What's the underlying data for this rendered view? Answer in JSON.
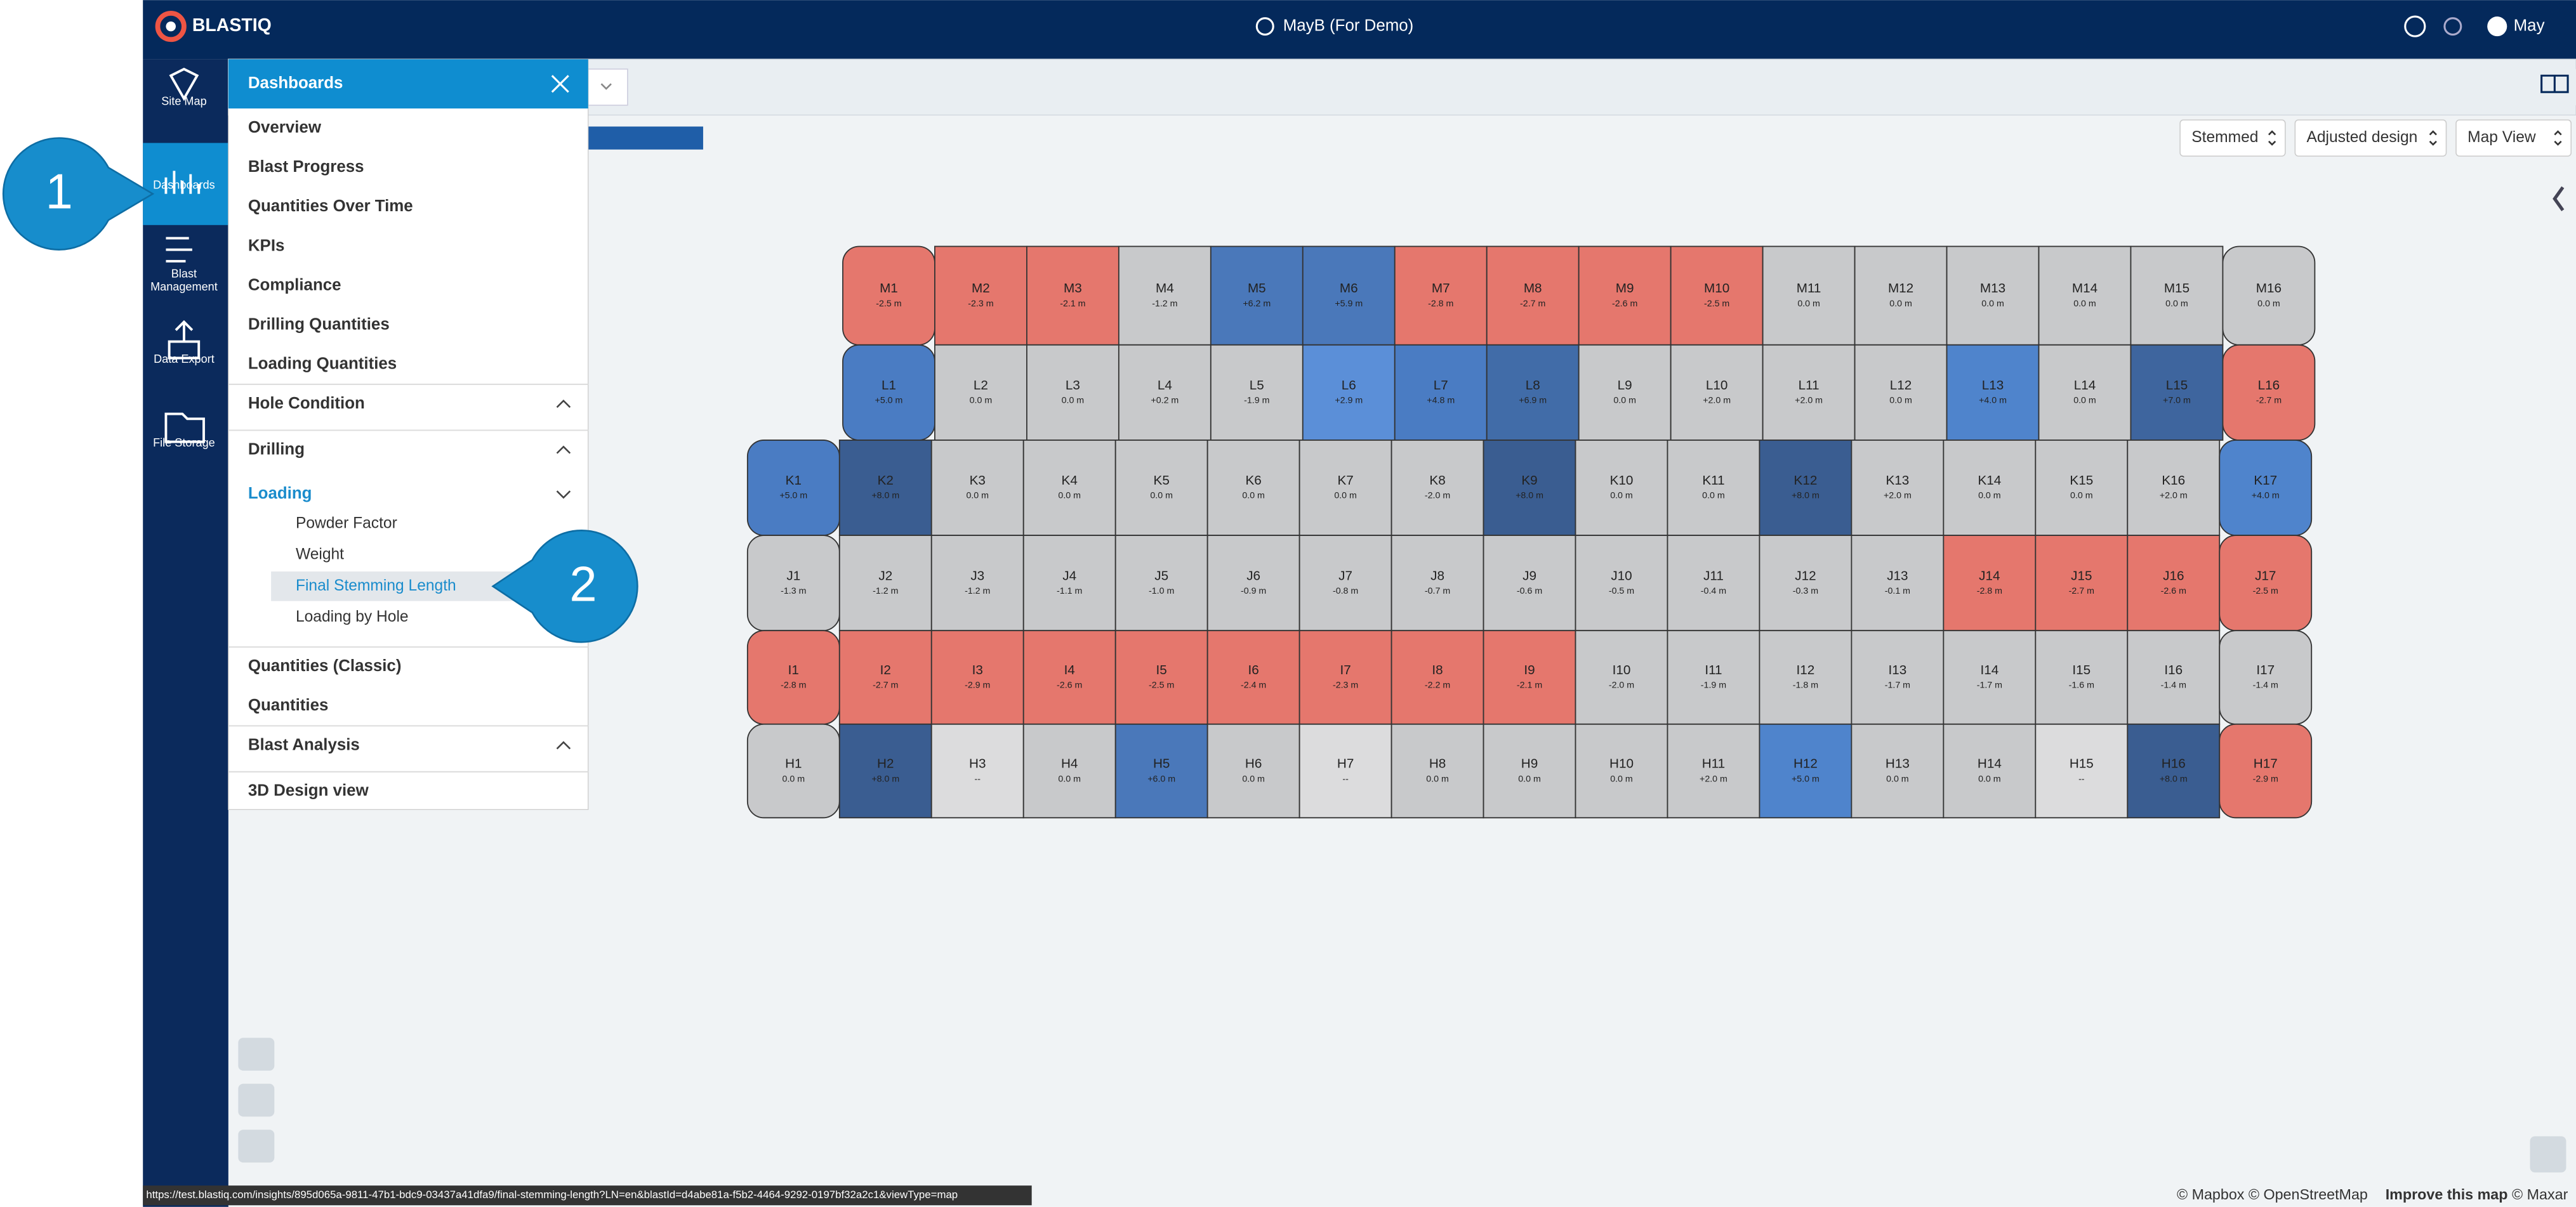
{
  "header": {
    "logo": "BLASTIQ",
    "site": "MayB (For Demo)",
    "user": "May"
  },
  "sidebar": [
    [
      "Site Map"
    ],
    [
      "Dashboards"
    ],
    [
      "Blast",
      "Management"
    ],
    [
      "Data Export"
    ],
    [
      "File Storage"
    ]
  ],
  "menu": {
    "title": "Dashboards",
    "items": [
      {
        "label": "Overview",
        "kind": "link"
      },
      {
        "label": "Blast Progress",
        "kind": "link"
      },
      {
        "label": "Quantities Over Time",
        "kind": "link"
      },
      {
        "label": "KPIs",
        "kind": "link"
      },
      {
        "label": "Compliance",
        "kind": "link"
      },
      {
        "label": "Drilling Quantities",
        "kind": "link"
      },
      {
        "label": "Loading Quantities",
        "kind": "link"
      },
      {
        "label": "Hole Condition",
        "kind": "group"
      },
      {
        "label": "Drilling",
        "kind": "group"
      },
      {
        "label": "Loading",
        "kind": "open"
      },
      {
        "label": "Powder Factor",
        "kind": "sub"
      },
      {
        "label": "Weight",
        "kind": "sub"
      },
      {
        "label": "Final Stemming Length",
        "kind": "selected"
      },
      {
        "label": "Loading by Hole",
        "kind": "sub"
      },
      {
        "label": "Quantities (Classic)",
        "kind": "link"
      },
      {
        "label": "Quantities",
        "kind": "link"
      },
      {
        "label": "Blast Analysis",
        "kind": "group"
      },
      {
        "label": "3D Design view",
        "kind": "link"
      }
    ]
  },
  "toolbar": [
    "Stemmed",
    "Adjusted design",
    "Map View"
  ],
  "callouts": [
    "1",
    "2"
  ],
  "rows": [
    {
      "cells": [
        {
          "label": "M1",
          "value": "-2.5 m",
          "color": "#e5776d"
        },
        {
          "label": "M2",
          "value": "-2.3 m",
          "color": "#e5776d"
        },
        {
          "label": "M3",
          "value": "-2.1 m",
          "color": "#e5776d"
        },
        {
          "label": "M4",
          "value": "-1.2 m",
          "color": "#c8c9cb"
        },
        {
          "label": "M5",
          "value": "+6.2 m",
          "color": "#4a78ba"
        },
        {
          "label": "M6",
          "value": "+5.9 m",
          "color": "#4a78ba"
        },
        {
          "label": "M7",
          "value": "-2.8 m",
          "color": "#e5776d"
        },
        {
          "label": "M8",
          "value": "-2.7 m",
          "color": "#e5776d"
        },
        {
          "label": "M9",
          "value": "-2.6 m",
          "color": "#e5776d"
        },
        {
          "label": "M10",
          "value": "-2.5 m",
          "color": "#e5776d"
        },
        {
          "label": "M11",
          "value": "0.0 m",
          "color": "#c8c9cb"
        },
        {
          "label": "M12",
          "value": "0.0 m",
          "color": "#c8c9cb"
        },
        {
          "label": "M13",
          "value": "0.0 m",
          "color": "#c8c9cb"
        },
        {
          "label": "M14",
          "value": "0.0 m",
          "color": "#c8c9cb"
        },
        {
          "label": "M15",
          "value": "0.0 m",
          "color": "#c8c9cb"
        },
        {
          "label": "M16",
          "value": "0.0 m",
          "color": "#c8c9cb"
        }
      ]
    },
    {
      "cells": [
        {
          "label": "L1",
          "value": "+5.0 m",
          "color": "#4a7cc3"
        },
        {
          "label": "L2",
          "value": "0.0 m",
          "color": "#c8c9cb"
        },
        {
          "label": "L3",
          "value": "0.0 m",
          "color": "#c8c9cb"
        },
        {
          "label": "L4",
          "value": "+0.2 m",
          "color": "#c8c9cb"
        },
        {
          "label": "L5",
          "value": "-1.9 m",
          "color": "#c8c9cb"
        },
        {
          "label": "L6",
          "value": "+2.9 m",
          "color": "#5b8fd8"
        },
        {
          "label": "L7",
          "value": "+4.8 m",
          "color": "#4a7cc3"
        },
        {
          "label": "L8",
          "value": "+6.9 m",
          "color": "#416ca8"
        },
        {
          "label": "L9",
          "value": "0.0 m",
          "color": "#c8c9cb"
        },
        {
          "label": "L10",
          "value": "+2.0 m",
          "color": "#c8c9cb"
        },
        {
          "label": "L11",
          "value": "+2.0 m",
          "color": "#c8c9cb"
        },
        {
          "label": "L12",
          "value": "0.0 m",
          "color": "#c8c9cb"
        },
        {
          "label": "L13",
          "value": "+4.0 m",
          "color": "#4f84cc"
        },
        {
          "label": "L14",
          "value": "0.0 m",
          "color": "#c8c9cb"
        },
        {
          "label": "L15",
          "value": "+7.0 m",
          "color": "#3e659e"
        },
        {
          "label": "L16",
          "value": "-2.7 m",
          "color": "#e5776d"
        }
      ]
    },
    {
      "cells": [
        {
          "label": "K1",
          "value": "+5.0 m",
          "color": "#4a7cc3"
        },
        {
          "label": "K2",
          "value": "+8.0 m",
          "color": "#3a5d91"
        },
        {
          "label": "K3",
          "value": "0.0 m",
          "color": "#c8c9cb"
        },
        {
          "label": "K4",
          "value": "0.0 m",
          "color": "#c8c9cb"
        },
        {
          "label": "K5",
          "value": "0.0 m",
          "color": "#c8c9cb"
        },
        {
          "label": "K6",
          "value": "0.0 m",
          "color": "#c8c9cb"
        },
        {
          "label": "K7",
          "value": "0.0 m",
          "color": "#c8c9cb"
        },
        {
          "label": "K8",
          "value": "-2.0 m",
          "color": "#c8c9cb"
        },
        {
          "label": "K9",
          "value": "+8.0 m",
          "color": "#3a5d91"
        },
        {
          "label": "K10",
          "value": "0.0 m",
          "color": "#c8c9cb"
        },
        {
          "label": "K11",
          "value": "0.0 m",
          "color": "#c8c9cb"
        },
        {
          "label": "K12",
          "value": "+8.0 m",
          "color": "#3a5d91"
        },
        {
          "label": "K13",
          "value": "+2.0 m",
          "color": "#c8c9cb"
        },
        {
          "label": "K14",
          "value": "0.0 m",
          "color": "#c8c9cb"
        },
        {
          "label": "K15",
          "value": "0.0 m",
          "color": "#c8c9cb"
        },
        {
          "label": "K16",
          "value": "+2.0 m",
          "color": "#c8c9cb"
        },
        {
          "label": "K17",
          "value": "+4.0 m",
          "color": "#4f84cc"
        }
      ]
    },
    {
      "cells": [
        {
          "label": "J1",
          "value": "-1.3 m",
          "color": "#c8c9cb"
        },
        {
          "label": "J2",
          "value": "-1.2 m",
          "color": "#c8c9cb"
        },
        {
          "label": "J3",
          "value": "-1.2 m",
          "color": "#c8c9cb"
        },
        {
          "label": "J4",
          "value": "-1.1 m",
          "color": "#c8c9cb"
        },
        {
          "label": "J5",
          "value": "-1.0 m",
          "color": "#c8c9cb"
        },
        {
          "label": "J6",
          "value": "-0.9 m",
          "color": "#c8c9cb"
        },
        {
          "label": "J7",
          "value": "-0.8 m",
          "color": "#c8c9cb"
        },
        {
          "label": "J8",
          "value": "-0.7 m",
          "color": "#c8c9cb"
        },
        {
          "label": "J9",
          "value": "-0.6 m",
          "color": "#c8c9cb"
        },
        {
          "label": "J10",
          "value": "-0.5 m",
          "color": "#c8c9cb"
        },
        {
          "label": "J11",
          "value": "-0.4 m",
          "color": "#c8c9cb"
        },
        {
          "label": "J12",
          "value": "-0.3 m",
          "color": "#c8c9cb"
        },
        {
          "label": "J13",
          "value": "-0.1 m",
          "color": "#c8c9cb"
        },
        {
          "label": "J14",
          "value": "-2.8 m",
          "color": "#e5776d"
        },
        {
          "label": "J15",
          "value": "-2.7 m",
          "color": "#e5776d"
        },
        {
          "label": "J16",
          "value": "-2.6 m",
          "color": "#e5776d"
        },
        {
          "label": "J17",
          "value": "-2.5 m",
          "color": "#e5776d"
        }
      ]
    },
    {
      "cells": [
        {
          "label": "I1",
          "value": "-2.8 m",
          "color": "#e5776d"
        },
        {
          "label": "I2",
          "value": "-2.7 m",
          "color": "#e5776d"
        },
        {
          "label": "I3",
          "value": "-2.9 m",
          "color": "#e5776d"
        },
        {
          "label": "I4",
          "value": "-2.6 m",
          "color": "#e5776d"
        },
        {
          "label": "I5",
          "value": "-2.5 m",
          "color": "#e5776d"
        },
        {
          "label": "I6",
          "value": "-2.4 m",
          "color": "#e5776d"
        },
        {
          "label": "I7",
          "value": "-2.3 m",
          "color": "#e5776d"
        },
        {
          "label": "I8",
          "value": "-2.2 m",
          "color": "#e5776d"
        },
        {
          "label": "I9",
          "value": "-2.1 m",
          "color": "#e5776d"
        },
        {
          "label": "I10",
          "value": "-2.0 m",
          "color": "#c8c9cb"
        },
        {
          "label": "I11",
          "value": "-1.9 m",
          "color": "#c8c9cb"
        },
        {
          "label": "I12",
          "value": "-1.8 m",
          "color": "#c8c9cb"
        },
        {
          "label": "I13",
          "value": "-1.7 m",
          "color": "#c8c9cb"
        },
        {
          "label": "I14",
          "value": "-1.7 m",
          "color": "#c8c9cb"
        },
        {
          "label": "I15",
          "value": "-1.6 m",
          "color": "#c8c9cb"
        },
        {
          "label": "I16",
          "value": "-1.4 m",
          "color": "#c8c9cb"
        },
        {
          "label": "I17",
          "value": "-1.4 m",
          "color": "#c8c9cb"
        }
      ]
    },
    {
      "cells": [
        {
          "label": "H1",
          "value": "0.0 m",
          "color": "#c8c9cb"
        },
        {
          "label": "H2",
          "value": "+8.0 m",
          "color": "#3a5d91"
        },
        {
          "label": "H3",
          "value": "--",
          "color": "#dcdcdd"
        },
        {
          "label": "H4",
          "value": "0.0 m",
          "color": "#c8c9cb"
        },
        {
          "label": "H5",
          "value": "+6.0 m",
          "color": "#4a78ba"
        },
        {
          "label": "H6",
          "value": "0.0 m",
          "color": "#c8c9cb"
        },
        {
          "label": "H7",
          "value": "--",
          "color": "#dcdcdd"
        },
        {
          "label": "H8",
          "value": "0.0 m",
          "color": "#c8c9cb"
        },
        {
          "label": "H9",
          "value": "0.0 m",
          "color": "#c8c9cb"
        },
        {
          "label": "H10",
          "value": "0.0 m",
          "color": "#c8c9cb"
        },
        {
          "label": "H11",
          "value": "+2.0 m",
          "color": "#c8c9cb"
        },
        {
          "label": "H12",
          "value": "+5.0 m",
          "color": "#4f84cc"
        },
        {
          "label": "H13",
          "value": "0.0 m",
          "color": "#c8c9cb"
        },
        {
          "label": "H14",
          "value": "0.0 m",
          "color": "#c8c9cb"
        },
        {
          "label": "H15",
          "value": "--",
          "color": "#dcdcdd"
        },
        {
          "label": "H16",
          "value": "+8.0 m",
          "color": "#3a5d91"
        },
        {
          "label": "H17",
          "value": "-2.9 m",
          "color": "#e5776d"
        }
      ]
    }
  ],
  "footer": {
    "url": "https://test.blastiq.com/insights/895d065a-9811-47b1-bdc9-03437a41dfa9/final-stemming-length?LN=en&blastId=d4abe81a-f5b2-4464-9292-0197bf32a2c1&viewType=map",
    "attribution": [
      "© Mapbox © OpenStreetMap",
      "Improve this map",
      "© Maxar"
    ]
  }
}
